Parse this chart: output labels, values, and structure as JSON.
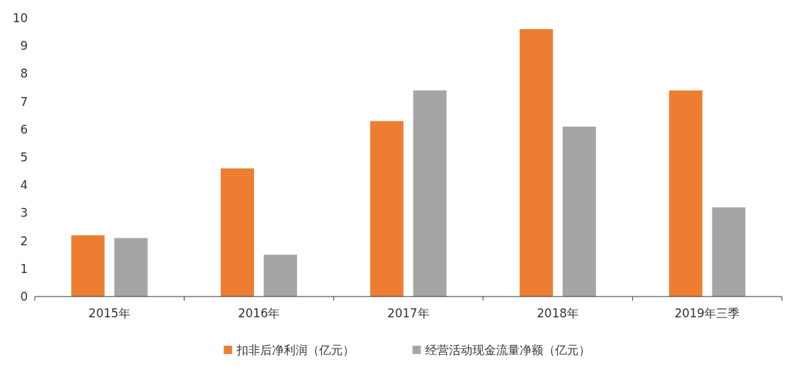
{
  "chart_data": {
    "type": "bar",
    "categories": [
      "2015年",
      "2016年",
      "2017年",
      "2018年",
      "2019年三季"
    ],
    "series": [
      {
        "name": "扣非后净利润（亿元）",
        "color": "#ed7d31",
        "values": [
          2.2,
          4.6,
          6.3,
          9.6,
          7.4
        ]
      },
      {
        "name": "经营活动现金流量净额（亿元）",
        "color": "#a5a5a5",
        "values": [
          2.1,
          1.5,
          7.4,
          6.1,
          3.2
        ]
      }
    ],
    "ylim": [
      0,
      10
    ],
    "yticks": [
      0,
      1,
      2,
      3,
      4,
      5,
      6,
      7,
      8,
      9,
      10
    ],
    "legend": "bottom"
  }
}
